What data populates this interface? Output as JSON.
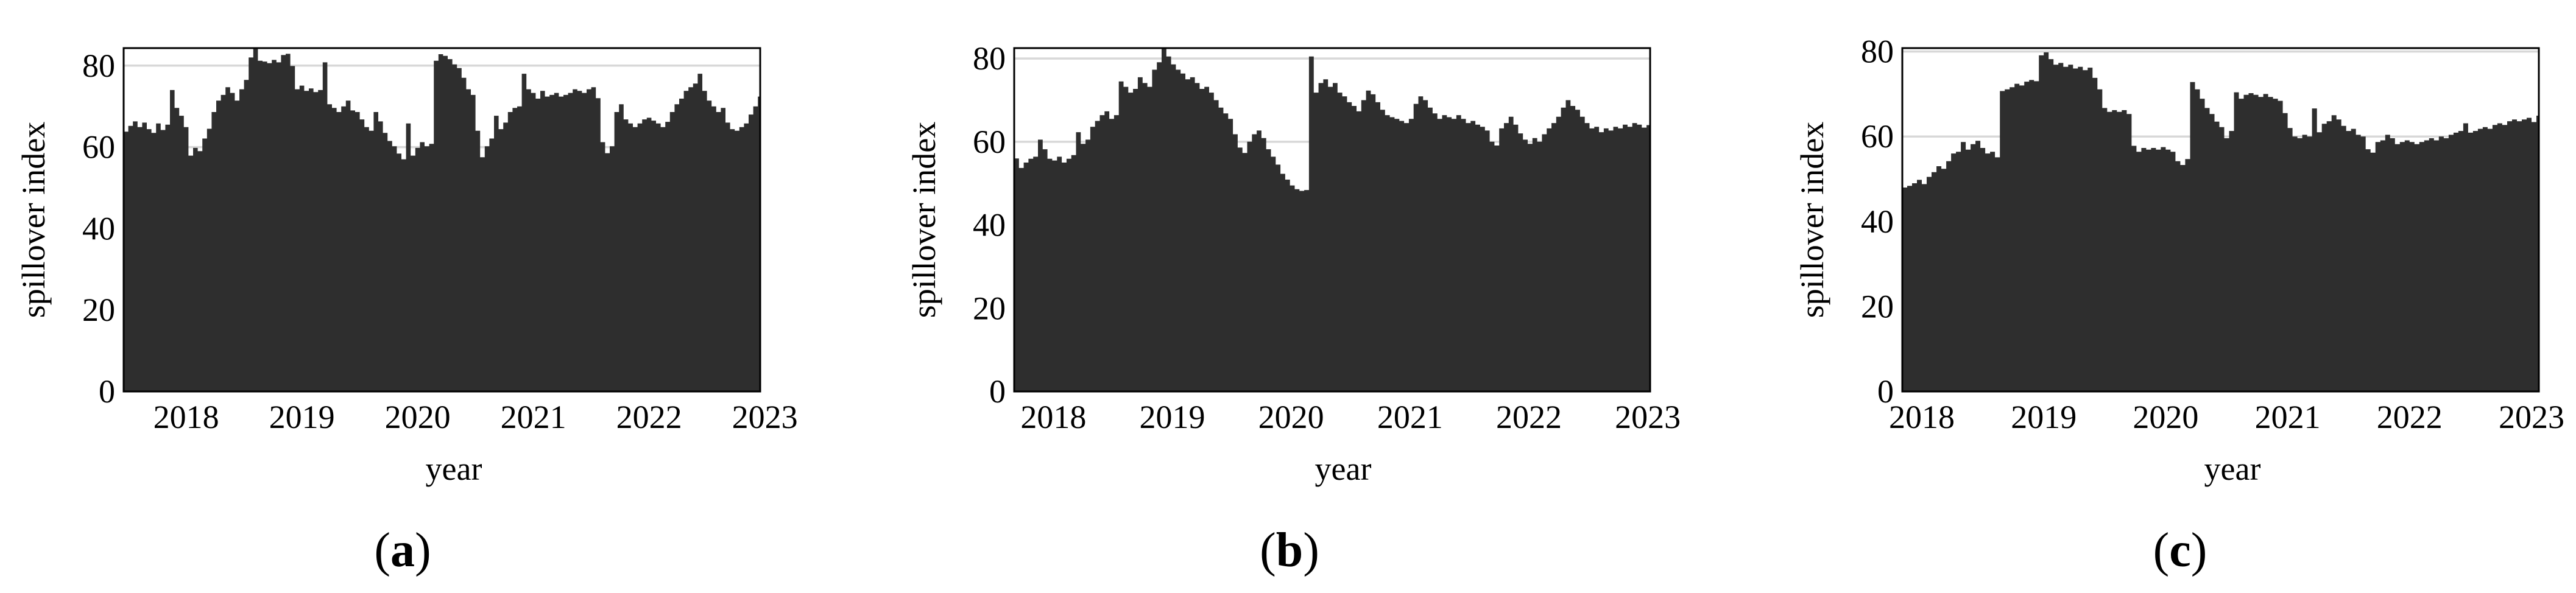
{
  "figure": {
    "background": "#ffffff",
    "text_color": "#000000",
    "area_fill_color": "#2e2e2e",
    "grid_color": "#d8d8d8",
    "axis_border_color": "#000000"
  },
  "chart_data": [
    {
      "type": "area",
      "caption_open": "(",
      "caption_letter": "a",
      "caption_close": ")",
      "xlabel": "year",
      "ylabel": "spillover index",
      "grid": true,
      "legend": false,
      "xticks": [
        2018,
        2019,
        2020,
        2021,
        2022,
        2023
      ],
      "yticks": [
        0,
        20,
        40,
        60,
        80
      ],
      "grid_values": [
        20,
        40,
        60,
        80
      ],
      "xlim": [
        2017.46,
        2022.96
      ],
      "ylim": [
        0,
        84.3
      ],
      "x_start": 2017.46,
      "x_step": 0.04,
      "values": [
        63.8,
        65.2,
        66.3,
        64.9,
        66.0,
        64.4,
        63.5,
        65.8,
        64.2,
        65.5,
        74.0,
        69.6,
        67.7,
        64.9,
        57.9,
        59.8,
        59.0,
        62.1,
        64.5,
        68.6,
        71.4,
        72.8,
        74.7,
        73.3,
        71.4,
        74.2,
        76.5,
        82.0,
        84.5,
        81.2,
        81.0,
        80.6,
        81.4,
        80.8,
        82.6,
        82.9,
        79.9,
        74.2,
        75.1,
        73.8,
        74.4,
        73.5,
        74.0,
        80.8,
        70.5,
        69.6,
        68.6,
        70.0,
        71.4,
        69.0,
        68.6,
        66.8,
        64.9,
        64.0,
        68.6,
        66.3,
        63.5,
        61.5,
        60.2,
        58.4,
        57.0,
        65.8,
        57.9,
        59.8,
        61.2,
        60.2,
        60.8,
        81.2,
        82.8,
        82.4,
        81.6,
        80.3,
        79.4,
        77.0,
        74.2,
        72.8,
        64.0,
        57.5,
        60.2,
        62.1,
        67.7,
        64.4,
        66.0,
        68.6,
        69.6,
        70.0,
        78.0,
        74.2,
        73.3,
        71.9,
        73.8,
        72.4,
        72.8,
        73.3,
        72.4,
        72.8,
        73.3,
        74.2,
        73.8,
        73.3,
        74.2,
        74.7,
        72.0,
        61.2,
        58.5,
        60.2,
        68.6,
        70.5,
        66.8,
        65.8,
        64.9,
        65.8,
        66.8,
        67.2,
        66.5,
        65.8,
        64.9,
        66.2,
        68.6,
        70.5,
        71.9,
        73.8,
        74.7,
        75.6,
        78.0,
        73.8,
        71.4,
        70.0,
        68.6,
        69.6,
        66.0,
        64.4,
        64.0,
        64.9,
        65.8,
        68.0,
        70.0,
        72.4,
        71.4
      ]
    },
    {
      "type": "area",
      "caption_open": "(",
      "caption_letter": "b",
      "caption_close": ")",
      "xlabel": "year",
      "ylabel": "spillover index",
      "grid": true,
      "legend": false,
      "xticks": [
        2018,
        2019,
        2020,
        2021,
        2022,
        2023
      ],
      "yticks": [
        0,
        20,
        40,
        60,
        80
      ],
      "grid_values": [
        20,
        40,
        60,
        80
      ],
      "xlim": [
        2017.67,
        2023.02
      ],
      "ylim": [
        0,
        82.5
      ],
      "x_start": 2017.67,
      "x_step": 0.04,
      "values": [
        56.0,
        53.7,
        55.0,
        55.9,
        56.4,
        60.5,
        58.2,
        55.9,
        55.5,
        56.4,
        55.0,
        55.9,
        56.8,
        62.3,
        59.5,
        60.5,
        63.6,
        65.0,
        66.4,
        67.3,
        65.5,
        66.4,
        74.5,
        73.2,
        71.8,
        72.7,
        75.5,
        74.1,
        73.2,
        77.3,
        79.1,
        82.8,
        80.5,
        78.6,
        77.3,
        76.4,
        75.0,
        75.5,
        74.1,
        72.7,
        73.2,
        71.8,
        70.0,
        68.2,
        66.8,
        65.5,
        61.8,
        58.6,
        57.3,
        60.0,
        61.8,
        62.7,
        60.9,
        58.2,
        56.4,
        54.5,
        52.3,
        50.9,
        49.5,
        48.6,
        48.2,
        48.4,
        80.5,
        71.8,
        74.1,
        75.0,
        73.2,
        74.1,
        71.8,
        70.9,
        69.5,
        68.6,
        67.3,
        70.0,
        72.3,
        71.4,
        69.5,
        67.7,
        66.4,
        65.9,
        65.5,
        65.0,
        64.5,
        65.5,
        69.1,
        70.9,
        70.0,
        68.2,
        66.8,
        65.5,
        66.4,
        65.9,
        65.5,
        66.4,
        65.5,
        64.5,
        65.0,
        64.1,
        63.6,
        62.7,
        60.0,
        59.1,
        63.2,
        64.5,
        66.0,
        64.1,
        62.0,
        60.5,
        59.5,
        60.9,
        60.0,
        61.8,
        63.2,
        64.5,
        66.0,
        68.2,
        70.0,
        68.6,
        67.7,
        66.0,
        64.5,
        63.2,
        63.6,
        62.3,
        63.2,
        62.7,
        63.6,
        63.2,
        64.1,
        63.6,
        64.5,
        64.1,
        63.4,
        64.0,
        63.6,
        64.5
      ]
    },
    {
      "type": "area",
      "caption_open": "(",
      "caption_letter": "c",
      "caption_close": ")",
      "xlabel": "year",
      "ylabel": "spillover index",
      "grid": true,
      "legend": false,
      "xticks": [
        2018,
        2019,
        2020,
        2021,
        2022,
        2023
      ],
      "yticks": [
        0,
        20,
        40,
        60,
        80
      ],
      "grid_values": [
        20,
        40,
        60,
        80
      ],
      "xlim": [
        2017.84,
        2023.06
      ],
      "ylim": [
        0,
        80.8
      ],
      "x_start": 2017.84,
      "x_step": 0.04,
      "values": [
        48.0,
        48.4,
        49.0,
        49.8,
        48.8,
        50.5,
        51.6,
        53.0,
        52.4,
        54.2,
        56.0,
        56.4,
        58.7,
        56.9,
        58.2,
        59.0,
        57.3,
        56.0,
        56.4,
        55.1,
        70.7,
        71.1,
        71.6,
        72.4,
        72.0,
        72.9,
        73.3,
        73.0,
        79.1,
        79.8,
        78.2,
        76.9,
        77.3,
        76.4,
        76.9,
        76.0,
        76.4,
        75.6,
        76.2,
        73.8,
        71.1,
        66.7,
        65.8,
        66.2,
        65.8,
        66.2,
        65.3,
        57.8,
        56.4,
        57.3,
        56.9,
        57.3,
        56.9,
        57.5,
        56.9,
        56.4,
        54.2,
        53.3,
        54.7,
        72.8,
        71.1,
        68.9,
        66.7,
        65.3,
        63.5,
        62.2,
        59.6,
        61.3,
        70.4,
        68.9,
        69.8,
        70.2,
        69.8,
        69.3,
        70.0,
        69.3,
        68.9,
        68.4,
        65.5,
        62.0,
        60.0,
        59.6,
        60.4,
        60.0,
        66.6,
        61.0,
        63.0,
        63.6,
        65.0,
        64.0,
        62.5,
        61.3,
        61.8,
        60.4,
        60.0,
        57.0,
        56.2,
        58.7,
        59.1,
        60.4,
        59.6,
        58.2,
        58.7,
        59.1,
        58.7,
        58.2,
        58.7,
        59.1,
        59.6,
        59.1,
        60.0,
        59.6,
        60.4,
        60.9,
        61.3,
        63.1,
        60.9,
        61.3,
        61.8,
        62.2,
        61.8,
        62.7,
        63.1,
        62.7,
        63.6,
        64.0,
        63.6,
        64.0,
        64.4,
        63.4,
        64.9
      ]
    }
  ]
}
